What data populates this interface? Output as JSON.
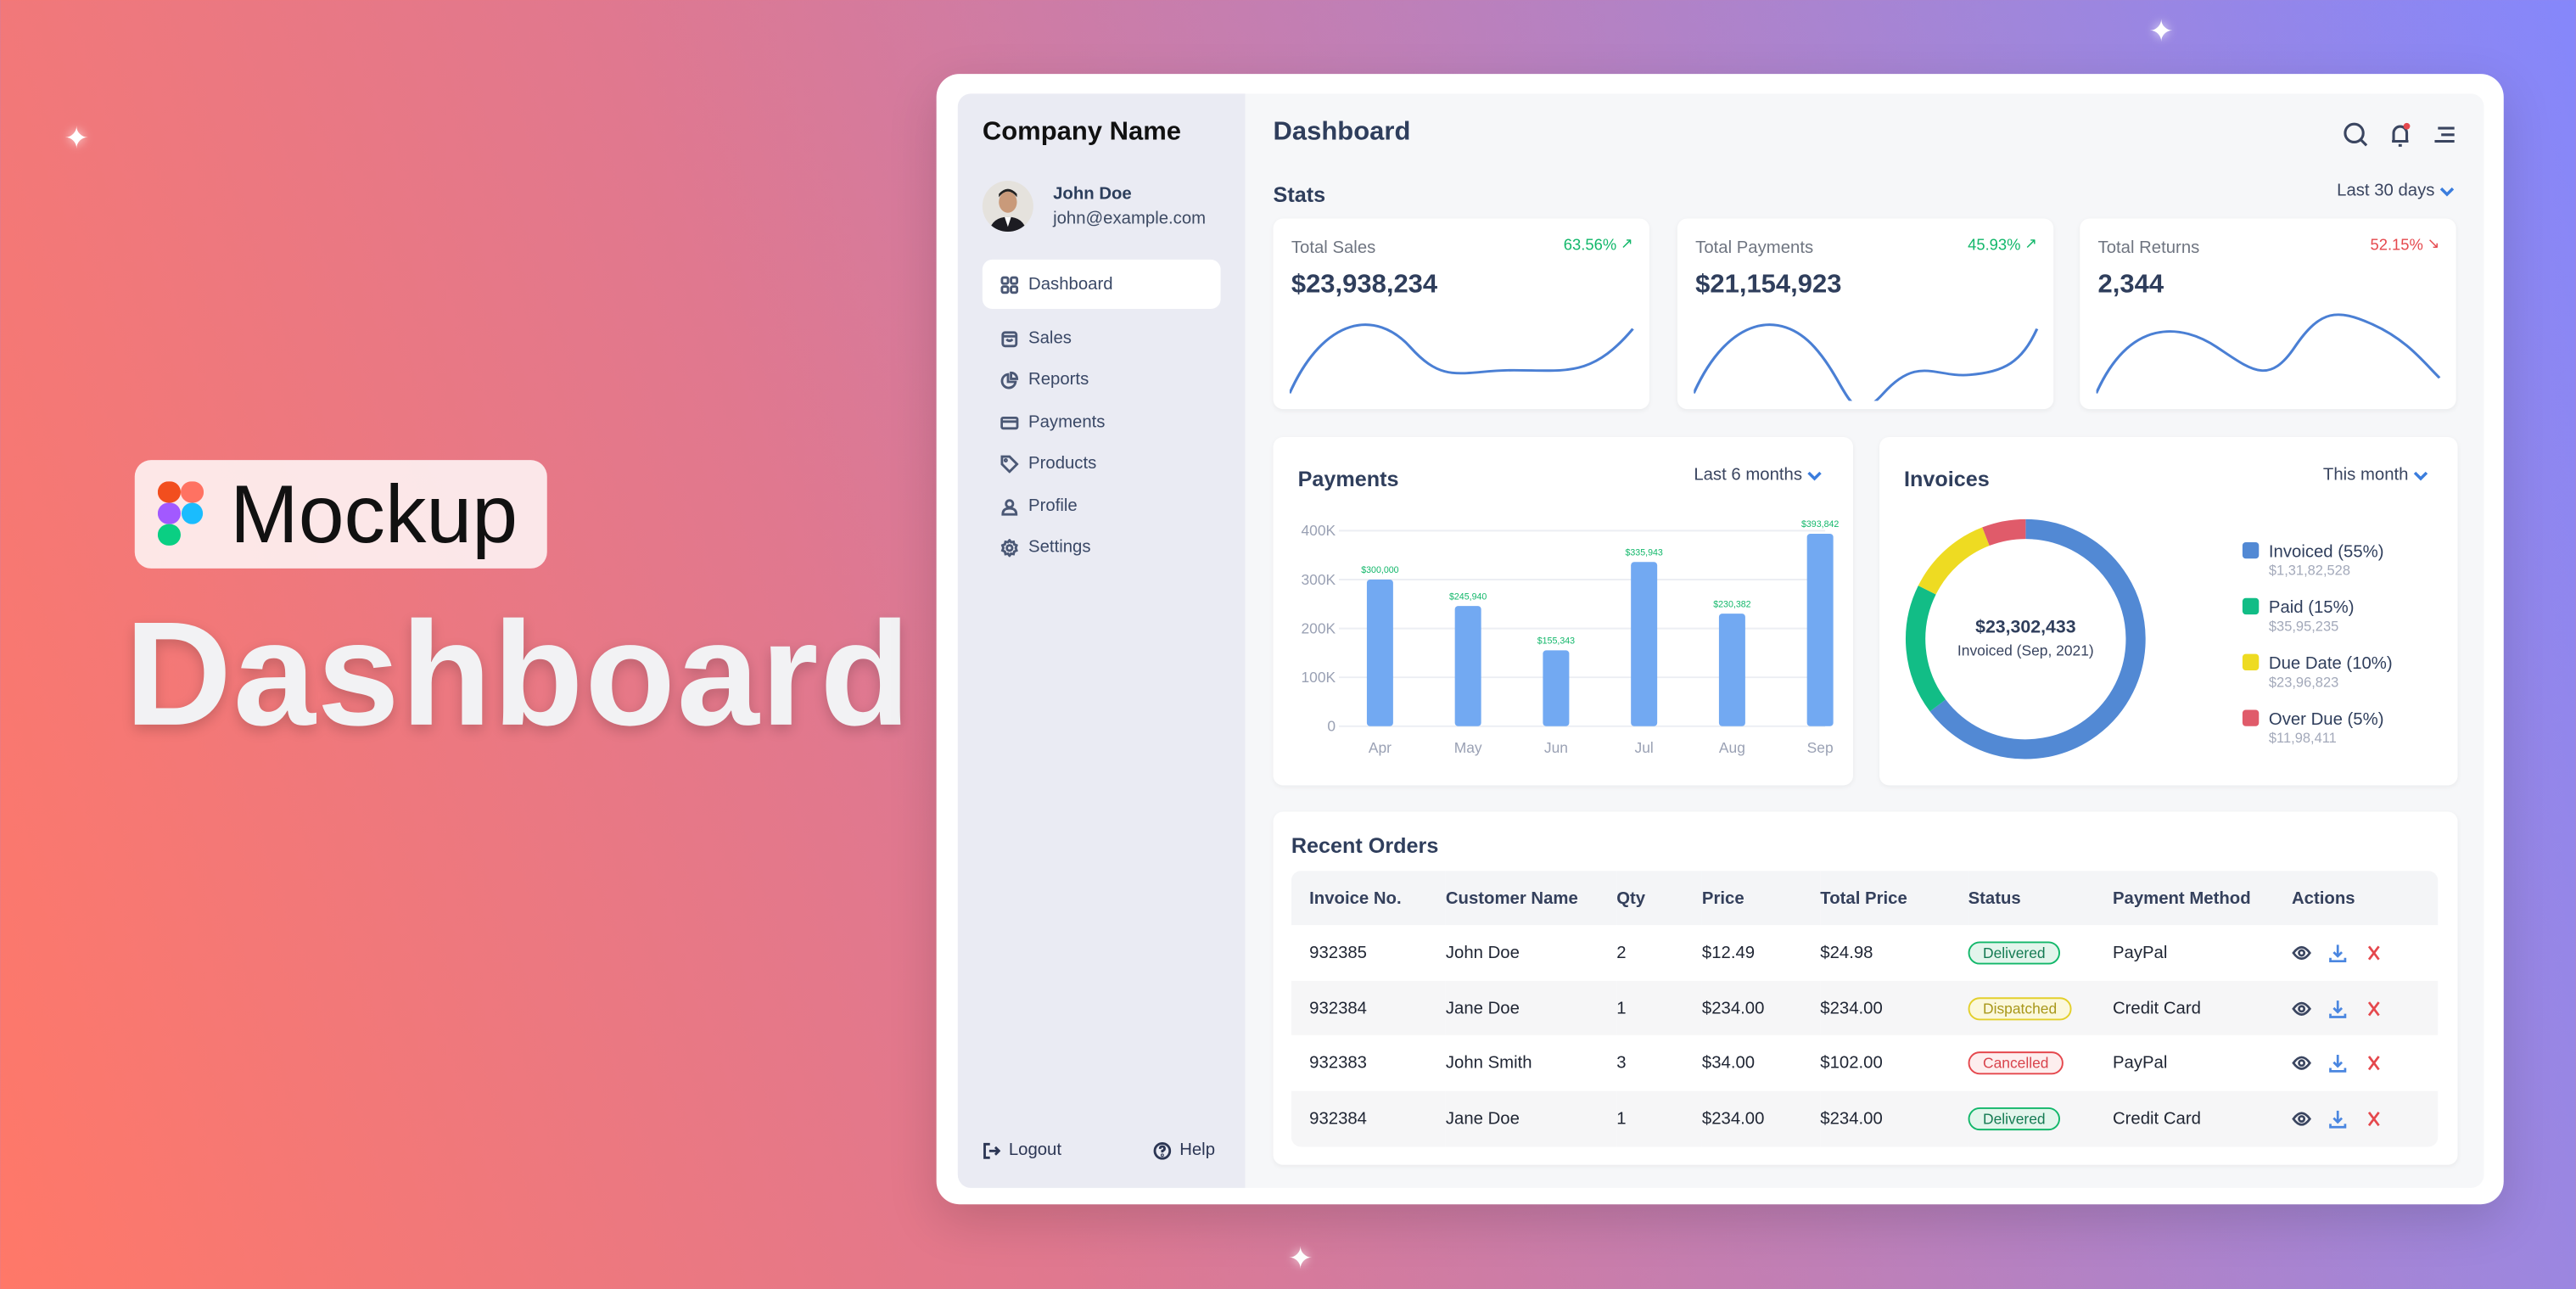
{
  "promo": {
    "badge_label": "Mockup",
    "title": "Dashboard"
  },
  "sidebar": {
    "company": "Company Name",
    "user": {
      "name": "John Doe",
      "email": "john@example.com"
    },
    "items": [
      {
        "label": "Dashboard",
        "icon": "grid-icon",
        "active": true
      },
      {
        "label": "Sales",
        "icon": "shopping-bag-icon"
      },
      {
        "label": "Reports",
        "icon": "pie-chart-icon"
      },
      {
        "label": "Payments",
        "icon": "credit-card-icon"
      },
      {
        "label": "Products",
        "icon": "tag-icon"
      },
      {
        "label": "Profile",
        "icon": "user-icon"
      },
      {
        "label": "Settings",
        "icon": "gear-icon"
      }
    ],
    "logout": "Logout",
    "help": "Help"
  },
  "header": {
    "title": "Dashboard"
  },
  "stats": {
    "title": "Stats",
    "range": "Last 30 days",
    "cards": [
      {
        "label": "Total Sales",
        "change": "63.56%",
        "trend": "up",
        "value": "$23,938,234"
      },
      {
        "label": "Total Payments",
        "change": "45.93%",
        "trend": "up",
        "value": "$21,154,923"
      },
      {
        "label": "Total Returns",
        "change": "52.15%",
        "trend": "down",
        "value": "2,344"
      }
    ]
  },
  "colors": {
    "up": "#12b76a",
    "down": "#e5484d",
    "bar": "#72a9f2",
    "accent": "#3b7ddd"
  },
  "chart_data": [
    {
      "type": "bar",
      "title": "Payments",
      "range": "Last 6 months",
      "categories": [
        "Apr",
        "May",
        "Jun",
        "Jul",
        "Aug",
        "Sep"
      ],
      "values": [
        300000,
        245940,
        155343,
        335943,
        230382,
        393842
      ],
      "data_labels": [
        "$300,000",
        "$245,940",
        "$155,343",
        "$335,943",
        "$230,382",
        "$393,842"
      ],
      "yticks": [
        "0",
        "100K",
        "200K",
        "300K",
        "400K"
      ],
      "ylim": [
        0,
        400000
      ],
      "grid": true
    },
    {
      "type": "pie",
      "title": "Invoices",
      "range": "This month",
      "center_value": "$23,302,433",
      "center_label": "Invoiced (Sep, 2021)",
      "legend_position": "right",
      "slices": [
        {
          "label": "Invoiced (55%)",
          "percent": 55,
          "amount": "$1,31,82,528",
          "color": "#5289d4"
        },
        {
          "label": "Paid (15%)",
          "percent": 15,
          "amount": "$35,95,235",
          "color": "#12bd86"
        },
        {
          "label": "Due Date (10%)",
          "percent": 10,
          "amount": "$23,96,823",
          "color": "#eedb22"
        },
        {
          "label": "Over Due (5%)",
          "percent": 5,
          "amount": "$11,98,411",
          "color": "#e05b6a"
        }
      ]
    }
  ],
  "orders": {
    "title": "Recent Orders",
    "columns": [
      "Invoice No.",
      "Customer Name",
      "Qty",
      "Price",
      "Total Price",
      "Status",
      "Payment Method",
      "Actions"
    ],
    "rows": [
      {
        "invoice": "932385",
        "customer": "John Doe",
        "qty": "2",
        "price": "$12.49",
        "total": "$24.98",
        "status": "Delivered",
        "method": "PayPal"
      },
      {
        "invoice": "932384",
        "customer": "Jane Doe",
        "qty": "1",
        "price": "$234.00",
        "total": "$234.00",
        "status": "Dispatched",
        "method": "Credit Card"
      },
      {
        "invoice": "932383",
        "customer": "John Smith",
        "qty": "3",
        "price": "$34.00",
        "total": "$102.00",
        "status": "Cancelled",
        "method": "PayPal"
      },
      {
        "invoice": "932384",
        "customer": "Jane Doe",
        "qty": "1",
        "price": "$234.00",
        "total": "$234.00",
        "status": "Delivered",
        "method": "Credit Card"
      }
    ],
    "status_colors": {
      "Delivered": {
        "fg": "#137a52",
        "bg": "#e3f5ec",
        "border": "#12b76a"
      },
      "Dispatched": {
        "fg": "#a8971a",
        "bg": "#fbf8dc",
        "border": "#e3cf2b"
      },
      "Cancelled": {
        "fg": "#d8434c",
        "bg": "#fdeeee",
        "border": "#e5484d"
      }
    }
  }
}
